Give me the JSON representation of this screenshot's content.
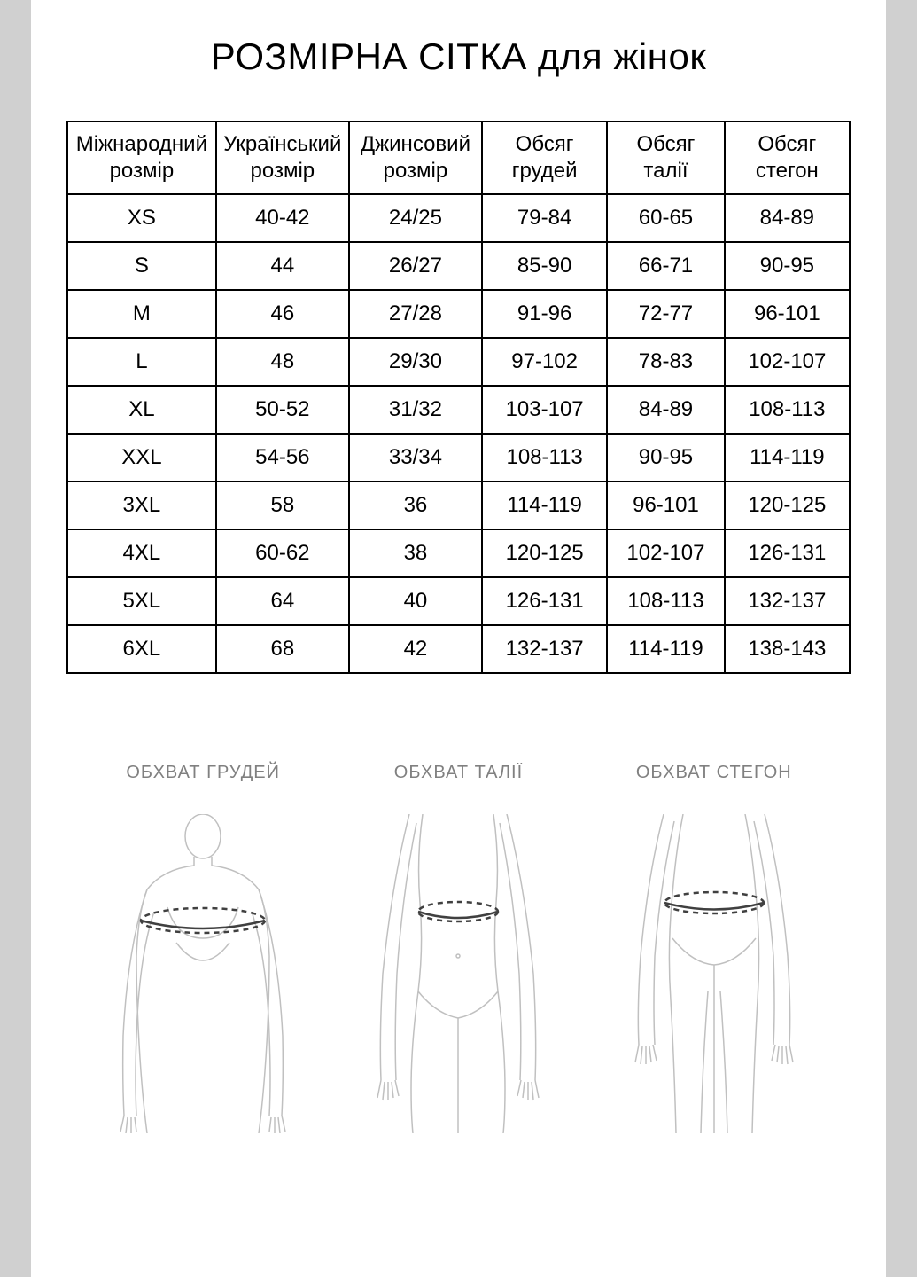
{
  "title": "РОЗМІРНА СІТКА для жінок",
  "table": {
    "columns": [
      "Міжнародний розмір",
      "Український розмір",
      "Джинсовий розмір",
      "Обсяг грудей",
      "Обсяг талії",
      "Обсяг стегон"
    ],
    "column_widths": [
      "19%",
      "17%",
      "17%",
      "16%",
      "15%",
      "16%"
    ],
    "rows": [
      [
        "XS",
        "40-42",
        "24/25",
        "79-84",
        "60-65",
        "84-89"
      ],
      [
        "S",
        "44",
        "26/27",
        "85-90",
        "66-71",
        "90-95"
      ],
      [
        "M",
        "46",
        "27/28",
        "91-96",
        "72-77",
        "96-101"
      ],
      [
        "L",
        "48",
        "29/30",
        "97-102",
        "78-83",
        "102-107"
      ],
      [
        "XL",
        "50-52",
        "31/32",
        "103-107",
        "84-89",
        "108-113"
      ],
      [
        "XXL",
        "54-56",
        "33/34",
        "108-113",
        "90-95",
        "114-119"
      ],
      [
        "3XL",
        "58",
        "36",
        "114-119",
        "96-101",
        "120-125"
      ],
      [
        "4XL",
        "60-62",
        "38",
        "120-125",
        "102-107",
        "126-131"
      ],
      [
        "5XL",
        "64",
        "40",
        "126-131",
        "108-113",
        "132-137"
      ],
      [
        "6XL",
        "68",
        "42",
        "132-137",
        "114-119",
        "138-143"
      ]
    ],
    "border_color": "#000000",
    "header_fontsize": 24,
    "cell_fontsize": 24
  },
  "diagrams": {
    "labels": [
      "ОБХВАТ ГРУДЕЙ",
      "ОБХВАТ ТАЛІЇ",
      "ОБХВАТ СТЕГОН"
    ],
    "stroke_color": "#c0c0c0",
    "dash_color": "#404040",
    "label_color": "#808080",
    "label_fontsize": 20
  },
  "page": {
    "background_color": "#ffffff",
    "outer_background": "#d0d0d0"
  }
}
